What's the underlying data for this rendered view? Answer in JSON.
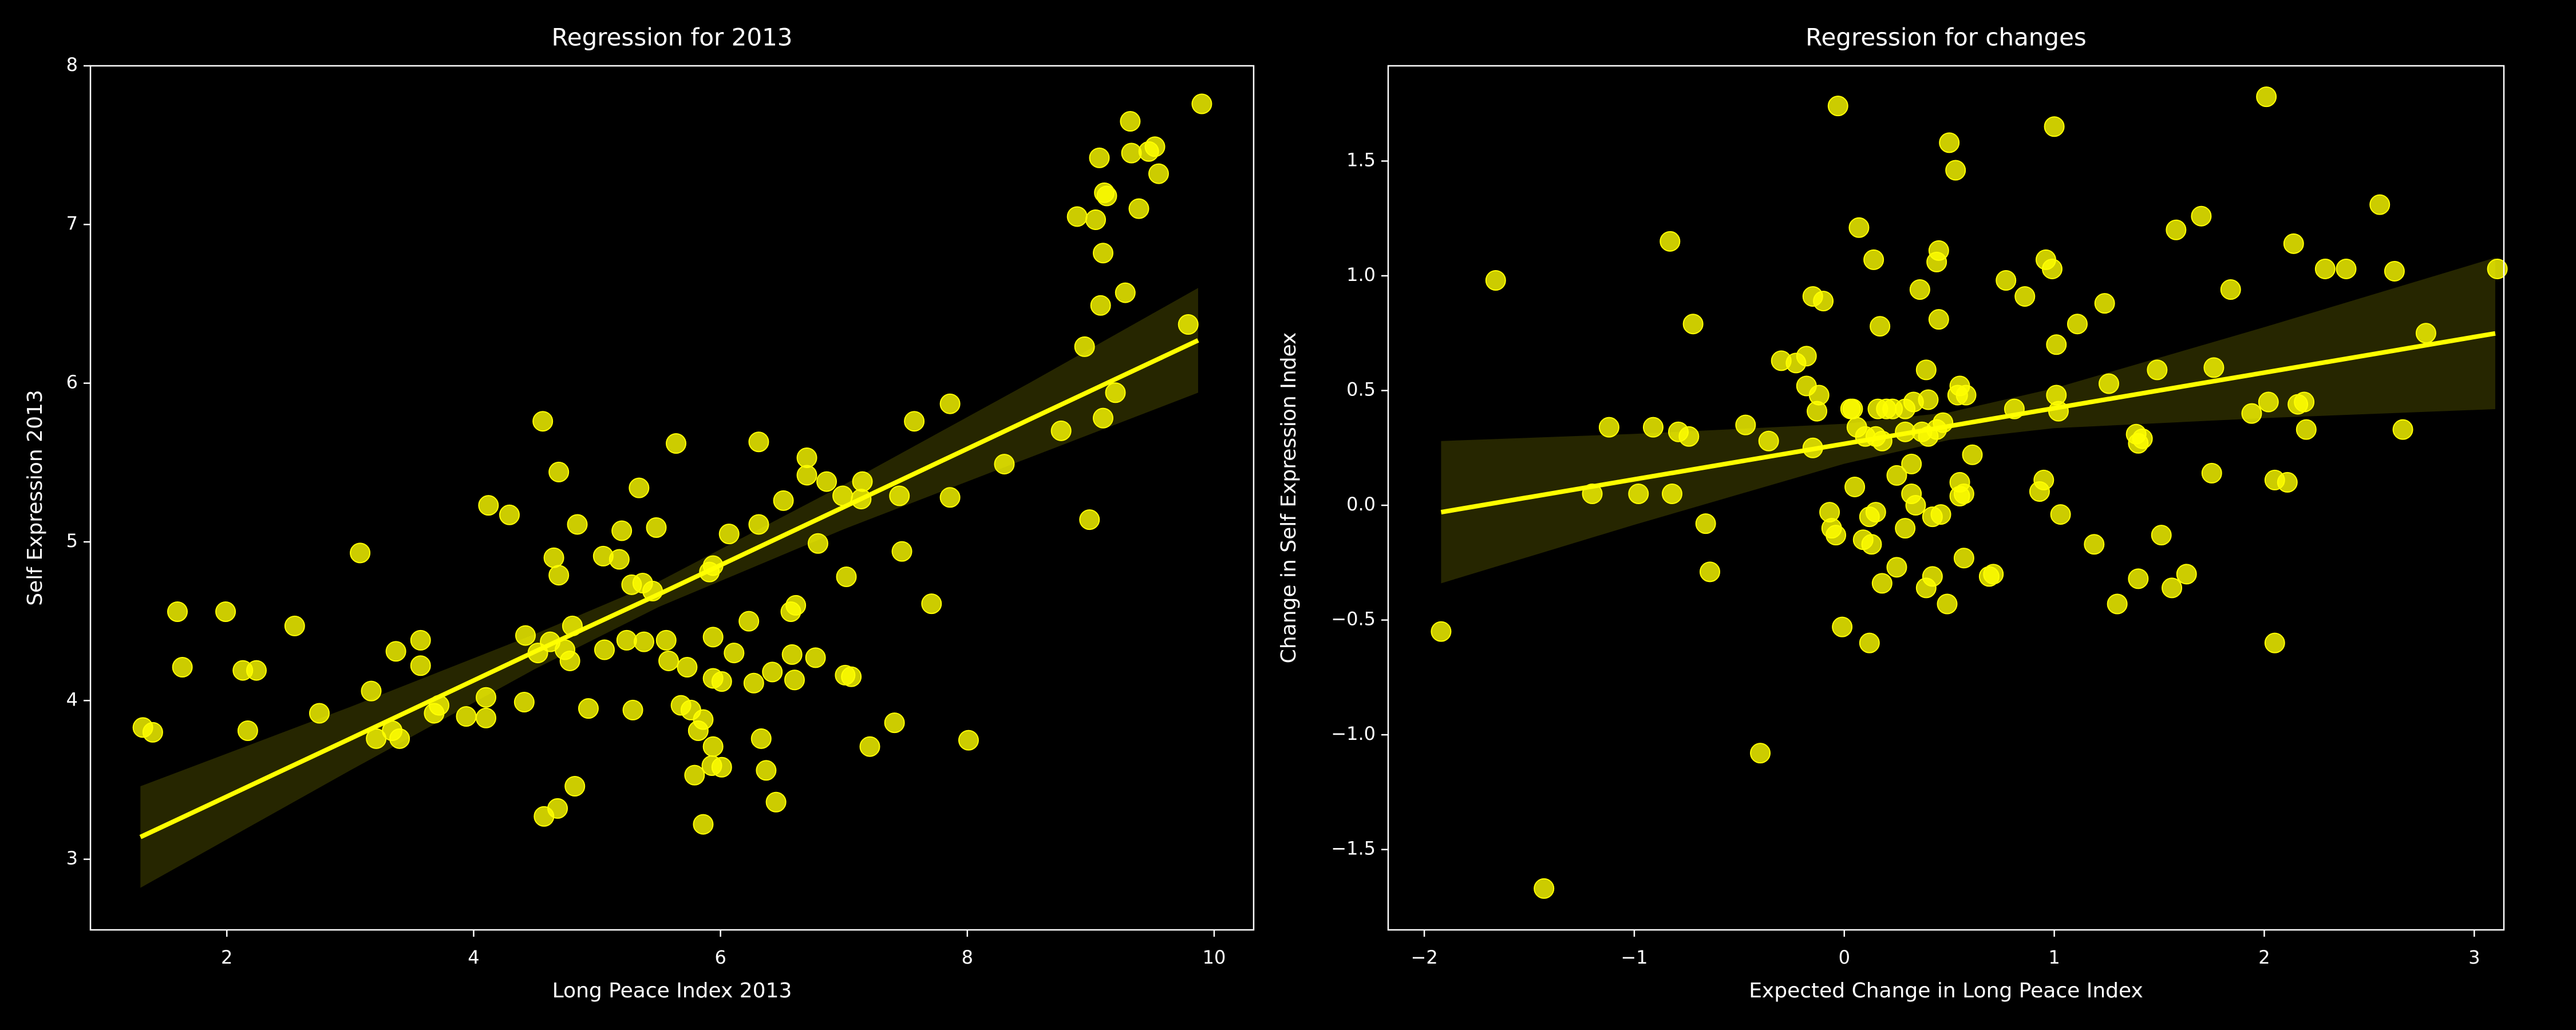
{
  "chart_data": [
    {
      "type": "scatter",
      "title": "Regression for 2013",
      "x_label": "Long Peace Index 2013",
      "y_label": "Self Expression 2013",
      "color": "#ffff00",
      "x": [
        1.32,
        1.4,
        1.6,
        1.64,
        1.99,
        2.13,
        2.17,
        2.24,
        2.55,
        2.75,
        3.08,
        3.17,
        3.21,
        3.34,
        3.37,
        3.4,
        3.57,
        3.57,
        3.68,
        3.72,
        3.94,
        4.1,
        4.1,
        4.12,
        4.29,
        4.41,
        4.42,
        4.52,
        4.56,
        4.57,
        4.62,
        4.65,
        4.68,
        4.69,
        4.69,
        4.74,
        4.78,
        4.8,
        4.82,
        4.84,
        4.93,
        5.06,
        5.05,
        5.2,
        5.18,
        5.24,
        5.28,
        5.29,
        5.34,
        5.37,
        5.38,
        5.45,
        5.48,
        5.56,
        5.58,
        5.64,
        5.68,
        5.73,
        5.76,
        5.79,
        5.82,
        5.86,
        5.86,
        5.91,
        5.94,
        5.94,
        5.94,
        5.94,
        5.93,
        6.01,
        6.01,
        6.07,
        6.11,
        6.23,
        6.27,
        6.31,
        6.31,
        6.33,
        6.37,
        6.42,
        6.45,
        6.51,
        6.57,
        6.6,
        6.61,
        6.58,
        6.7,
        6.7,
        6.77,
        6.79,
        6.86,
        6.99,
        7.02,
        7.01,
        7.06,
        7.14,
        7.15,
        7.21,
        7.41,
        7.47,
        7.45,
        7.57,
        7.71,
        7.86,
        7.86,
        8.01,
        8.3,
        8.76,
        8.89,
        8.95,
        8.99,
        9.04,
        9.07,
        9.08,
        9.1,
        9.1,
        9.11,
        9.13,
        9.2,
        9.28,
        9.32,
        9.33,
        9.39,
        9.47,
        9.52,
        9.55,
        9.79,
        9.9
      ],
      "values": [
        3.83,
        3.8,
        4.56,
        4.21,
        4.56,
        4.19,
        3.81,
        4.19,
        4.47,
        3.92,
        4.93,
        4.06,
        3.76,
        3.81,
        4.31,
        3.76,
        4.38,
        4.22,
        3.92,
        3.97,
        3.9,
        4.02,
        3.89,
        5.23,
        5.17,
        3.99,
        4.41,
        4.3,
        5.76,
        3.27,
        4.37,
        4.9,
        3.32,
        5.44,
        4.79,
        4.32,
        4.25,
        4.47,
        3.46,
        5.11,
        3.95,
        4.32,
        4.91,
        5.07,
        4.89,
        4.38,
        4.73,
        3.94,
        5.34,
        4.74,
        4.37,
        4.69,
        5.09,
        4.38,
        4.25,
        5.62,
        3.97,
        4.21,
        3.94,
        3.53,
        3.81,
        3.22,
        3.88,
        4.81,
        4.4,
        4.85,
        3.71,
        4.14,
        3.59,
        3.58,
        4.12,
        5.05,
        4.3,
        4.5,
        4.11,
        5.63,
        5.11,
        3.76,
        3.56,
        4.18,
        3.36,
        5.26,
        4.56,
        4.13,
        4.6,
        4.29,
        5.42,
        5.53,
        4.27,
        4.99,
        5.38,
        5.29,
        4.78,
        4.16,
        4.15,
        5.27,
        5.38,
        3.71,
        3.86,
        4.94,
        5.29,
        5.76,
        4.61,
        5.28,
        5.87,
        3.75,
        5.49,
        5.7,
        7.05,
        6.23,
        5.14,
        7.03,
        7.42,
        6.49,
        5.78,
        6.82,
        7.2,
        7.18,
        5.94,
        6.57,
        7.65,
        7.45,
        7.1,
        7.46,
        7.49,
        7.32,
        6.37,
        7.76
      ],
      "regression": {
        "x": [
          1.3,
          3,
          4.5,
          5.5,
          7,
          8.5,
          9.87
        ],
        "y": [
          3.14,
          3.76,
          4.31,
          4.67,
          5.22,
          5.77,
          6.27
        ],
        "lower": [
          2.82,
          3.56,
          4.2,
          4.59,
          5.08,
          5.53,
          5.94
        ],
        "upper": [
          3.46,
          3.96,
          4.42,
          4.75,
          5.36,
          6.0,
          6.6
        ]
      },
      "xlim": [
        0.895,
        10.32
      ],
      "ylim": [
        2.555,
        8
      ],
      "xticks": [
        2,
        4,
        6,
        8,
        10
      ],
      "yticks": [
        3,
        4,
        5,
        6,
        7,
        8
      ]
    },
    {
      "type": "scatter",
      "title": "Regression for changes",
      "x_label": "Expected Change in Long Peace Index",
      "y_label": "Change in Self Expression Index",
      "color": "#ffff00",
      "x": [
        -1.92,
        -1.66,
        -1.43,
        -1.2,
        -1.12,
        -0.98,
        -0.91,
        -0.83,
        -0.82,
        -0.79,
        -0.74,
        -0.72,
        -0.66,
        -0.64,
        -0.47,
        -0.4,
        -0.36,
        -0.3,
        -0.23,
        -0.18,
        -0.18,
        -0.15,
        -0.15,
        -0.13,
        -0.12,
        -0.1,
        -0.07,
        -0.06,
        -0.04,
        -0.03,
        -0.01,
        0.03,
        0.04,
        0.05,
        0.06,
        0.07,
        0.09,
        0.1,
        0.12,
        0.12,
        0.13,
        0.14,
        0.15,
        0.15,
        0.16,
        0.17,
        0.18,
        0.18,
        0.2,
        0.23,
        0.25,
        0.25,
        0.29,
        0.29,
        0.29,
        0.32,
        0.32,
        0.33,
        0.34,
        0.36,
        0.37,
        0.39,
        0.39,
        0.4,
        0.4,
        0.42,
        0.42,
        0.44,
        0.44,
        0.45,
        0.45,
        0.46,
        0.47,
        0.49,
        0.5,
        0.53,
        0.54,
        0.55,
        0.55,
        0.55,
        0.57,
        0.57,
        0.58,
        0.61,
        0.69,
        0.71,
        0.77,
        0.81,
        0.86,
        0.93,
        0.95,
        0.96,
        0.99,
        1.0,
        1.01,
        1.01,
        1.02,
        1.03,
        1.11,
        1.19,
        1.24,
        1.26,
        1.3,
        1.39,
        1.4,
        1.4,
        1.42,
        1.51,
        1.49,
        1.56,
        1.58,
        1.63,
        1.7,
        1.75,
        1.76,
        1.84,
        1.94,
        2.01,
        2.02,
        2.05,
        2.05,
        2.11,
        2.14,
        2.16,
        2.19,
        2.2,
        2.29,
        2.39,
        2.55,
        2.62,
        2.66,
        2.77,
        3.11
      ],
      "values": [
        -0.55,
        0.98,
        -1.67,
        0.05,
        0.34,
        0.05,
        0.34,
        1.15,
        0.05,
        0.32,
        0.3,
        0.79,
        -0.08,
        -0.29,
        0.35,
        -1.08,
        0.28,
        0.63,
        0.62,
        0.65,
        0.52,
        0.91,
        0.25,
        0.41,
        0.48,
        0.89,
        -0.03,
        -0.1,
        -0.13,
        1.74,
        -0.53,
        0.42,
        0.42,
        0.08,
        0.34,
        1.21,
        -0.15,
        0.3,
        -0.05,
        -0.6,
        -0.17,
        1.07,
        -0.03,
        0.3,
        0.42,
        0.78,
        0.28,
        -0.34,
        0.42,
        0.42,
        -0.27,
        0.13,
        0.32,
        0.42,
        -0.1,
        0.18,
        0.05,
        0.45,
        0.0,
        0.94,
        0.32,
        -0.36,
        0.59,
        0.3,
        0.46,
        -0.31,
        -0.05,
        1.06,
        0.33,
        1.11,
        0.81,
        -0.04,
        0.36,
        -0.43,
        1.58,
        1.46,
        0.48,
        0.52,
        0.04,
        0.1,
        0.05,
        -0.23,
        0.48,
        0.22,
        -0.31,
        -0.3,
        0.98,
        0.42,
        0.91,
        0.06,
        0.11,
        1.07,
        1.03,
        1.65,
        0.48,
        0.7,
        0.41,
        -0.04,
        0.79,
        -0.17,
        0.88,
        0.53,
        -0.43,
        0.31,
        -0.32,
        0.27,
        0.29,
        -0.13,
        0.59,
        -0.36,
        1.2,
        -0.3,
        1.26,
        0.14,
        0.6,
        0.94,
        0.4,
        1.78,
        0.45,
        -0.6,
        0.11,
        0.1,
        1.14,
        0.44,
        0.45,
        0.33,
        1.03,
        1.03,
        1.31,
        1.02,
        0.33,
        0.75,
        1.03
      ],
      "regression": {
        "x": [
          -1.92,
          -1,
          0,
          0.5,
          1,
          2,
          3.1
        ],
        "y": [
          -0.03,
          0.113,
          0.268,
          0.345,
          0.423,
          0.578,
          0.749
        ],
        "lower": [
          -0.34,
          -0.085,
          0.181,
          0.285,
          0.336,
          0.38,
          0.419
        ],
        "upper": [
          0.28,
          0.311,
          0.355,
          0.405,
          0.51,
          0.776,
          1.079
        ]
      },
      "xlim": [
        -2.172,
        3.141
      ],
      "ylim": [
        -1.85,
        1.915
      ],
      "xticks": [
        {
          "value": -2,
          "label": "−2"
        },
        {
          "value": -1,
          "label": "−1"
        },
        0,
        1,
        2,
        3
      ],
      "yticks": [
        {
          "value": -1.5,
          "label": "−1.5"
        },
        {
          "value": -1.0,
          "label": "−1.0"
        },
        {
          "value": -0.5,
          "label": "−0.5"
        },
        {
          "value": 0.0,
          "label": "0.0"
        },
        0.5,
        {
          "value": 1.0,
          "label": "1.0"
        },
        1.5
      ]
    }
  ]
}
